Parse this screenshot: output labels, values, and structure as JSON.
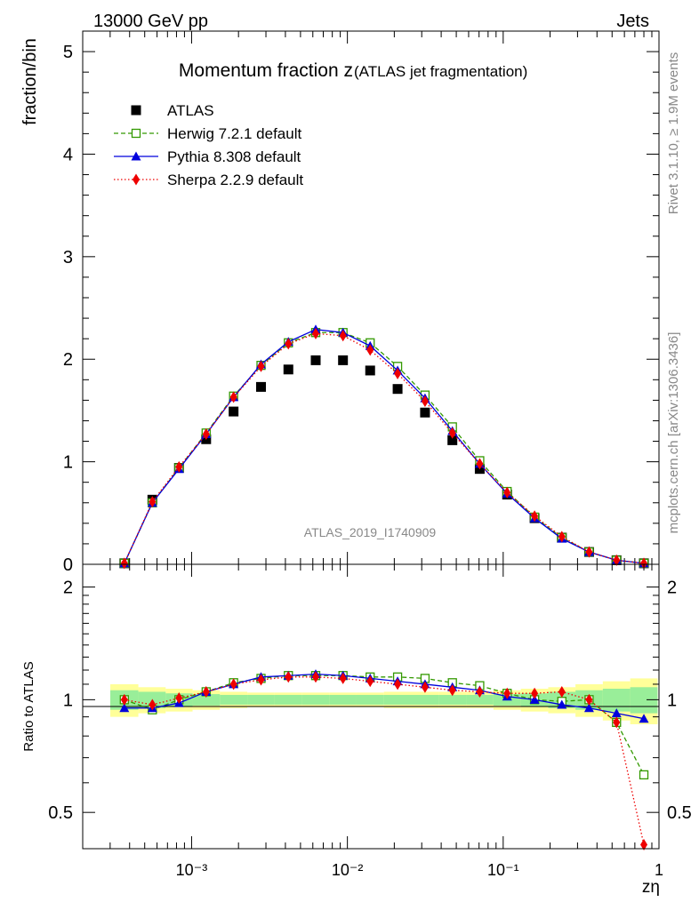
{
  "header": {
    "left": "13000 GeV pp",
    "right": "Jets"
  },
  "side_labels": {
    "rivet": "Rivet 3.1.10, ≥ 1.9M events",
    "mcplots": "mcplots.cern.ch [arXiv:1306.3436]"
  },
  "chart_data": [
    {
      "type": "scatter",
      "title": "Momentum fraction z",
      "subtitle": "(ATLAS jet fragmentation)",
      "watermark": "ATLAS_2019_I1740909",
      "ylabel": "fraction/bin",
      "x_scale": "log",
      "xlim": [
        0.0002,
        1
      ],
      "ylim": [
        0,
        5.2
      ],
      "y_ticks": [
        "0",
        "1",
        "2",
        "3",
        "4",
        "5"
      ],
      "legend_position": "top-left",
      "x": [
        0.00037,
        0.00056,
        0.00083,
        0.00124,
        0.00186,
        0.00279,
        0.00418,
        0.00626,
        0.00937,
        0.014,
        0.021,
        0.0315,
        0.0472,
        0.0707,
        0.106,
        0.159,
        0.238,
        0.356,
        0.534,
        0.8
      ],
      "series": [
        {
          "name": "ATLAS",
          "color": "#000000",
          "marker": "square-filled",
          "values": [
            0.01,
            0.63,
            0.94,
            1.22,
            1.49,
            1.73,
            1.9,
            1.99,
            1.99,
            1.89,
            1.71,
            1.48,
            1.21,
            0.93,
            0.68,
            0.45,
            0.26,
            0.12,
            0.04,
            0.01
          ]
        },
        {
          "name": "Herwig 7.2.1 default",
          "color": "#339900",
          "marker": "square-open",
          "line": "dashed",
          "values": [
            0.01,
            0.6,
            0.94,
            1.28,
            1.64,
            1.94,
            2.16,
            2.26,
            2.26,
            2.16,
            1.93,
            1.65,
            1.34,
            1.01,
            0.71,
            0.46,
            0.26,
            0.12,
            0.04,
            0.01
          ]
        },
        {
          "name": "Pythia 8.308 default",
          "color": "#0000dd",
          "marker": "triangle-filled",
          "line": "solid",
          "values": [
            0.01,
            0.6,
            0.93,
            1.27,
            1.63,
            1.95,
            2.17,
            2.29,
            2.26,
            2.13,
            1.89,
            1.62,
            1.3,
            0.98,
            0.69,
            0.45,
            0.25,
            0.12,
            0.04,
            0.01
          ]
        },
        {
          "name": "Sherpa 2.2.9 default",
          "color": "#ee0000",
          "marker": "diamond-filled",
          "line": "dotted",
          "values": [
            0.01,
            0.61,
            0.95,
            1.27,
            1.63,
            1.93,
            2.15,
            2.25,
            2.23,
            2.09,
            1.86,
            1.59,
            1.28,
            0.98,
            0.7,
            0.47,
            0.27,
            0.12,
            0.04,
            0.01
          ]
        }
      ]
    },
    {
      "type": "scatter",
      "ylabel": "Ratio to ATLAS",
      "xlabel": "zη",
      "x_scale": "log",
      "y_scale": "log",
      "xlim": [
        0.0002,
        1
      ],
      "ylim": [
        0.4,
        2.3
      ],
      "y_ticks": [
        "0.5",
        "1",
        "2"
      ],
      "x_ticks": [
        "10⁻³",
        "10⁻²",
        "10⁻¹",
        "1"
      ],
      "x": [
        0.00037,
        0.00056,
        0.00083,
        0.00124,
        0.00186,
        0.00279,
        0.00418,
        0.00626,
        0.00937,
        0.014,
        0.021,
        0.0315,
        0.0472,
        0.0707,
        0.106,
        0.159,
        0.238,
        0.356,
        0.534,
        0.8
      ],
      "bands": {
        "inner_color": "#99ee99",
        "outer_color": "#ffff99",
        "inner": [
          0.06,
          0.05,
          0.04,
          0.035,
          0.03,
          0.03,
          0.03,
          0.03,
          0.03,
          0.03,
          0.03,
          0.03,
          0.03,
          0.03,
          0.035,
          0.04,
          0.05,
          0.06,
          0.07,
          0.08
        ],
        "outer": [
          0.1,
          0.08,
          0.07,
          0.06,
          0.05,
          0.045,
          0.045,
          0.045,
          0.045,
          0.045,
          0.05,
          0.05,
          0.05,
          0.05,
          0.06,
          0.07,
          0.08,
          0.1,
          0.12,
          0.14
        ]
      },
      "series": [
        {
          "name": "Herwig 7.2.1 default",
          "color": "#339900",
          "marker": "square-open",
          "line": "dashed",
          "values": [
            1.0,
            0.94,
            1.0,
            1.05,
            1.11,
            1.14,
            1.16,
            1.16,
            1.16,
            1.15,
            1.15,
            1.14,
            1.11,
            1.09,
            1.04,
            1.0,
            0.99,
            1.0,
            0.87,
            0.63
          ]
        },
        {
          "name": "Pythia 8.308 default",
          "color": "#0000dd",
          "marker": "triangle-filled",
          "line": "solid",
          "values": [
            0.95,
            0.95,
            0.98,
            1.05,
            1.1,
            1.15,
            1.16,
            1.17,
            1.16,
            1.14,
            1.12,
            1.1,
            1.08,
            1.06,
            1.02,
            1.0,
            0.97,
            0.95,
            0.92,
            0.89
          ]
        },
        {
          "name": "Sherpa 2.2.9 default",
          "color": "#ee0000",
          "marker": "diamond-filled",
          "line": "dotted",
          "values": [
            1.0,
            0.97,
            1.01,
            1.05,
            1.1,
            1.13,
            1.15,
            1.15,
            1.14,
            1.12,
            1.1,
            1.08,
            1.06,
            1.05,
            1.04,
            1.04,
            1.05,
            1.0,
            0.87,
            0.41
          ]
        }
      ]
    }
  ]
}
